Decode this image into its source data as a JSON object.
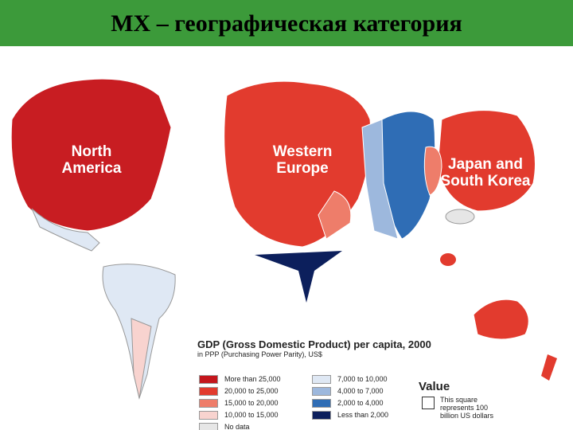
{
  "header": {
    "title": "МХ – географическая категория"
  },
  "map": {
    "labels": [
      "North America",
      "Western Europe",
      "Japan and South Korea"
    ]
  },
  "legend": {
    "title": "GDP (Gross Domestic Product) per capita, 2000",
    "subtitle": "in PPP (Purchasing Power Parity), US$",
    "items": [
      {
        "label": "More than 25,000",
        "color": "#c4161c"
      },
      {
        "label": "20,000 to 25,000",
        "color": "#e23b2e"
      },
      {
        "label": "15,000 to 20,000",
        "color": "#ee7d6a"
      },
      {
        "label": "10,000 to 15,000",
        "color": "#f8d3cf"
      },
      {
        "label": "No data",
        "color": "#e6e6e6"
      },
      {
        "label": "7,000 to 10,000",
        "color": "#dfe8f4"
      },
      {
        "label": "4,000 to 7,000",
        "color": "#9db8dd"
      },
      {
        "label": "2,000 to 4,000",
        "color": "#2f6db5"
      },
      {
        "label": "Less than 2,000",
        "color": "#0c1f5c"
      }
    ],
    "value_title": "Value",
    "value_note": "This square represents 100 billion US dollars"
  }
}
